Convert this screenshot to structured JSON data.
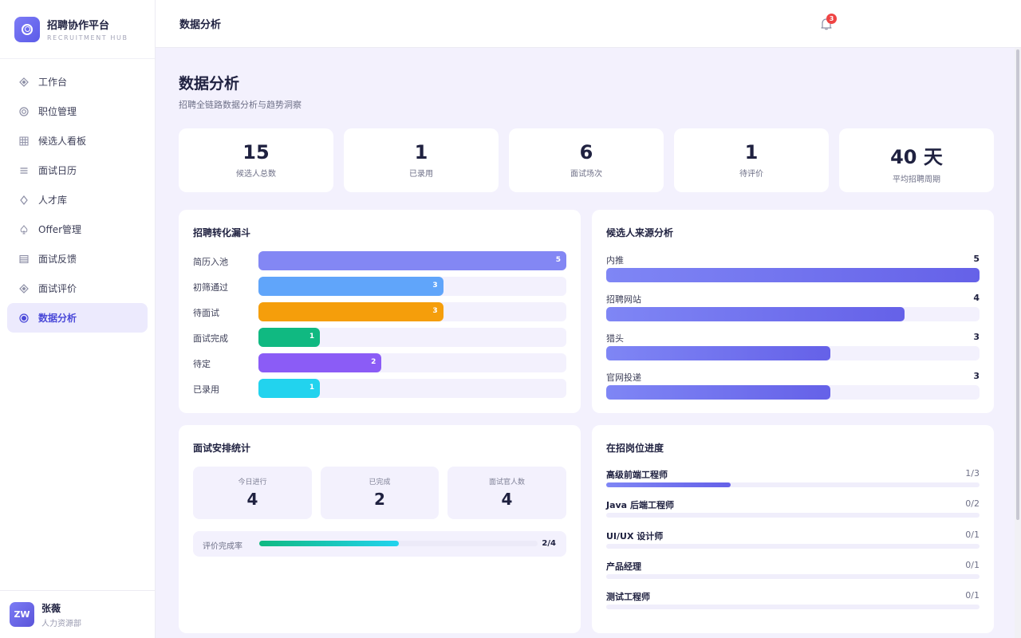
{
  "brand": {
    "title": "招聘协作平台",
    "subtitle": "RECRUITMENT HUB"
  },
  "nav": [
    {
      "label": "工作台",
      "icon": "diamond-icon"
    },
    {
      "label": "职位管理",
      "icon": "target-icon"
    },
    {
      "label": "候选人看板",
      "icon": "grid-icon"
    },
    {
      "label": "面试日历",
      "icon": "list-icon"
    },
    {
      "label": "人才库",
      "icon": "gem-icon"
    },
    {
      "label": "Offer管理",
      "icon": "spade-icon"
    },
    {
      "label": "面试反馈",
      "icon": "table-icon"
    },
    {
      "label": "面试评价",
      "icon": "star-diamond-icon"
    },
    {
      "label": "数据分析",
      "icon": "circle-dot-icon",
      "active": true
    }
  ],
  "user": {
    "initials": "ZW",
    "name": "张薇",
    "dept": "人力资源部"
  },
  "topbar": {
    "title": "数据分析",
    "notifications": "3"
  },
  "page": {
    "title": "数据分析",
    "subtitle": "招聘全链路数据分析与趋势洞察"
  },
  "stats": [
    {
      "value": "15",
      "label": "候选人总数"
    },
    {
      "value": "1",
      "label": "已录用"
    },
    {
      "value": "6",
      "label": "面试场次"
    },
    {
      "value": "1",
      "label": "待评价"
    },
    {
      "value": "40 天",
      "label": "平均招聘周期"
    }
  ],
  "funnel": {
    "title": "招聘转化漏斗",
    "max": 5,
    "rows": [
      {
        "label": "简历入池",
        "value": 5,
        "color": "#8387f4"
      },
      {
        "label": "初筛通过",
        "value": 3,
        "color": "#60a5fa"
      },
      {
        "label": "待面试",
        "value": 3,
        "color": "#f59e0b"
      },
      {
        "label": "面试完成",
        "value": 1,
        "color": "#10b981"
      },
      {
        "label": "待定",
        "value": 2,
        "color": "#8b5cf6"
      },
      {
        "label": "已录用",
        "value": 1,
        "color": "#22d3ee"
      }
    ]
  },
  "sources": {
    "title": "候选人来源分析",
    "max": 5,
    "rows": [
      {
        "label": "内推",
        "value": 5
      },
      {
        "label": "招聘网站",
        "value": 4
      },
      {
        "label": "猎头",
        "value": 3
      },
      {
        "label": "官网投递",
        "value": 3
      }
    ]
  },
  "interviews": {
    "title": "面试安排统计",
    "items": [
      {
        "label": "今日进行",
        "value": "4"
      },
      {
        "label": "已完成",
        "value": "2"
      },
      {
        "label": "面试官人数",
        "value": "4"
      }
    ],
    "rate_label": "评价完成率",
    "rate_text": "2/4",
    "rate": 0.5
  },
  "positions": {
    "title": "在招岗位进度",
    "rows": [
      {
        "label": "高级前端工程师",
        "text": "1/3",
        "progress": 0.3333
      },
      {
        "label": "Java 后端工程师",
        "text": "0/2",
        "progress": 0
      },
      {
        "label": "UI/UX 设计师",
        "text": "0/1",
        "progress": 0
      },
      {
        "label": "产品经理",
        "text": "0/1",
        "progress": 0
      },
      {
        "label": "测试工程师",
        "text": "0/1",
        "progress": 0
      }
    ]
  }
}
